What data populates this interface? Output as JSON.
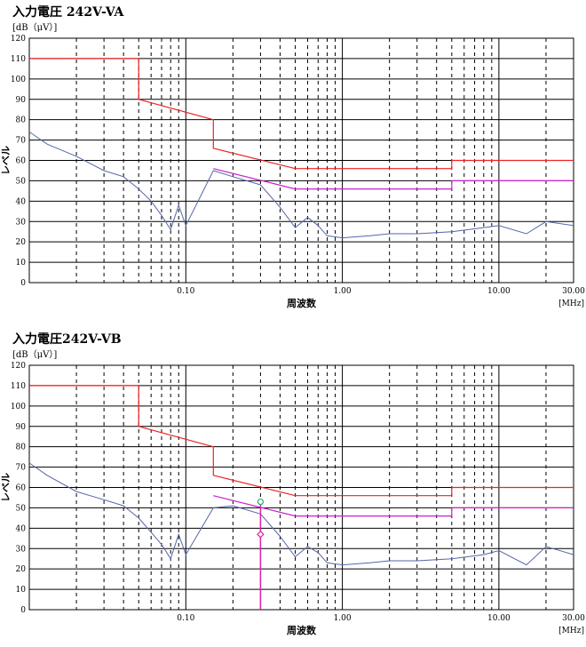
{
  "chart_data": [
    {
      "type": "line",
      "title": "入力電圧 242V-VA",
      "ylabel_unit": "[dB（μV）]",
      "ylabel": "レベル",
      "xlabel": "周波数",
      "x_unit": "[MHz]",
      "x_scale": "log",
      "xlim": [
        0.01,
        30.0
      ],
      "ylim": [
        0,
        120
      ],
      "y_ticks": [
        "0",
        "10",
        "20",
        "30",
        "40",
        "50",
        "60",
        "70",
        "80",
        "90",
        "100",
        "110",
        "120"
      ],
      "x_ticks": [
        {
          "value": 0.1,
          "label": "0.10"
        },
        {
          "value": 1.0,
          "label": "1.00"
        },
        {
          "value": 10.0,
          "label": "10.00"
        },
        {
          "value": 30.0,
          "label": "30.00"
        }
      ],
      "grid": true,
      "colors": {
        "limit_qp": "#ee2222",
        "limit_av": "#cc22cc",
        "trace": "#5566aa"
      },
      "series": [
        {
          "role": "limit_qp",
          "x": [
            0.01,
            0.05,
            0.05,
            0.15,
            0.15,
            0.5,
            5.0,
            5.0,
            30.0
          ],
          "values": [
            110,
            110,
            90,
            80,
            66,
            56,
            56,
            60,
            60
          ]
        },
        {
          "role": "limit_av",
          "x": [
            0.15,
            0.5,
            5.0,
            5.0,
            30.0
          ],
          "values": [
            56,
            46,
            46,
            50,
            50
          ]
        },
        {
          "role": "trace",
          "x": [
            0.01,
            0.013,
            0.02,
            0.03,
            0.04,
            0.05,
            0.06,
            0.07,
            0.08,
            0.09,
            0.1,
            0.15,
            0.2,
            0.3,
            0.4,
            0.5,
            0.6,
            0.7,
            0.8,
            1.0,
            1.5,
            2.0,
            3.0,
            5.0,
            8.0,
            10.0,
            15.0,
            20.0,
            30.0
          ],
          "values": [
            74,
            68,
            62,
            55,
            52,
            46,
            40,
            33,
            26,
            38,
            28,
            55,
            52,
            48,
            37,
            27,
            32,
            28,
            23,
            22,
            23,
            24,
            24,
            25,
            27,
            28,
            24,
            30,
            28
          ]
        }
      ]
    },
    {
      "type": "line",
      "title": "入力電圧242V-VB",
      "ylabel_unit": "[dB（μV）]",
      "ylabel": "レベル",
      "xlabel": "周波数",
      "x_unit": "[MHz]",
      "x_scale": "log",
      "xlim": [
        0.01,
        30.0
      ],
      "ylim": [
        0,
        120
      ],
      "y_ticks": [
        "0",
        "10",
        "20",
        "30",
        "40",
        "50",
        "60",
        "70",
        "80",
        "90",
        "100",
        "110",
        "120"
      ],
      "x_ticks": [
        {
          "value": 0.1,
          "label": "0.10"
        },
        {
          "value": 1.0,
          "label": "1.00"
        },
        {
          "value": 10.0,
          "label": "10.00"
        },
        {
          "value": 30.0,
          "label": "30.00"
        }
      ],
      "grid": true,
      "colors": {
        "limit_qp": "#ee2222",
        "limit_av": "#cc22cc",
        "trace": "#5566aa",
        "marker_qp": "#22aa66",
        "marker_av": "#dd22aa"
      },
      "series": [
        {
          "role": "limit_qp",
          "x": [
            0.01,
            0.05,
            0.05,
            0.15,
            0.15,
            0.5,
            5.0,
            5.0,
            30.0
          ],
          "values": [
            110,
            110,
            90,
            80,
            66,
            56,
            56,
            60,
            60
          ]
        },
        {
          "role": "limit_av",
          "x": [
            0.15,
            0.5,
            5.0,
            5.0,
            30.0
          ],
          "values": [
            56,
            46,
            46,
            50,
            50
          ]
        },
        {
          "role": "trace",
          "x": [
            0.01,
            0.013,
            0.02,
            0.03,
            0.04,
            0.05,
            0.06,
            0.07,
            0.08,
            0.09,
            0.1,
            0.15,
            0.2,
            0.3,
            0.4,
            0.5,
            0.6,
            0.7,
            0.8,
            1.0,
            1.5,
            2.0,
            3.0,
            5.0,
            8.0,
            10.0,
            15.0,
            20.0,
            30.0
          ],
          "values": [
            72,
            66,
            58,
            54,
            51,
            45,
            38,
            32,
            25,
            37,
            27,
            50,
            51,
            47,
            36,
            26,
            31,
            28,
            23,
            22,
            23,
            24,
            24,
            25,
            27,
            29,
            22,
            31,
            27
          ]
        }
      ],
      "markers": [
        {
          "x": 0.3,
          "qp": 53,
          "av": 37
        }
      ]
    }
  ]
}
